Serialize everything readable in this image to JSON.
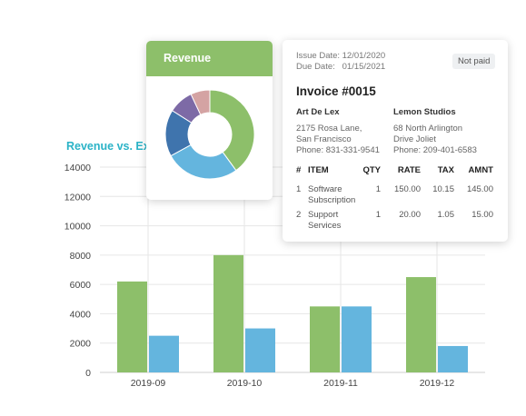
{
  "chart_title": "Revenue vs. Exp",
  "chart_data": {
    "type": "bar",
    "categories": [
      "2019-09",
      "2019-10",
      "2019-11",
      "2019-12"
    ],
    "series": [
      {
        "values": [
          6200,
          8000,
          4500,
          6500
        ],
        "color": "#8dbf6a"
      },
      {
        "values": [
          2500,
          3000,
          4500,
          1800
        ],
        "color": "#64b5de"
      }
    ],
    "ylim": [
      0,
      14000
    ],
    "yticks": [
      0,
      2000,
      4000,
      6000,
      8000,
      10000,
      12000,
      14000
    ],
    "grid": true
  },
  "revenue_card": {
    "title": "Revenue",
    "donut": [
      {
        "value": 40,
        "color": "#8dbf6a"
      },
      {
        "value": 27,
        "color": "#64b5de"
      },
      {
        "value": 17,
        "color": "#3f74ad"
      },
      {
        "value": 9,
        "color": "#7d6aa6"
      },
      {
        "value": 7,
        "color": "#d4a3a3"
      }
    ]
  },
  "invoice": {
    "issue_label": "Issue Date:",
    "issue_date": "12/01/2020",
    "due_label": "Due Date:",
    "due_date": "01/15/2021",
    "status": "Not paid",
    "number": "Invoice #0015",
    "from": {
      "name": "Art De Lex",
      "line1": "2175 Rosa Lane,",
      "line2": "San Francisco",
      "phone": "Phone: 831-331-9541"
    },
    "to": {
      "name": "Lemon Studios",
      "line1": "68 North Arlington",
      "line2": "Drive Joliet",
      "phone": "Phone: 209-401-6583"
    },
    "headers": {
      "idx": "#",
      "item": "ITEM",
      "qty": "QTY",
      "rate": "RATE",
      "tax": "TAX",
      "amnt": "AMNT"
    },
    "rows": [
      {
        "idx": "1",
        "item_line1": "Software",
        "item_line2": "Subscription",
        "qty": "1",
        "rate": "150.00",
        "tax": "10.15",
        "amnt": "145.00"
      },
      {
        "idx": "2",
        "item_line1": "Support",
        "item_line2": "Services",
        "qty": "1",
        "rate": "20.00",
        "tax": "1.05",
        "amnt": "15.00"
      }
    ]
  }
}
